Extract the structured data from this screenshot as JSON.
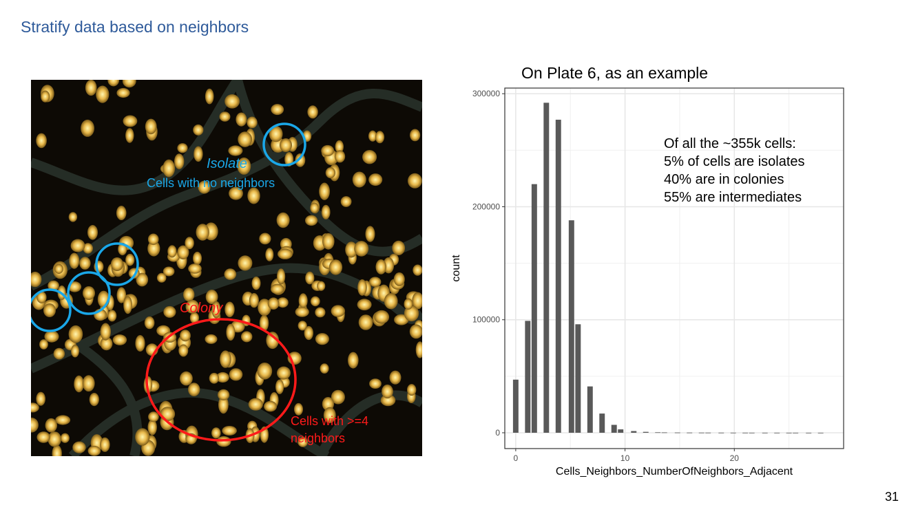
{
  "slide": {
    "title": "Stratify data based on neighbors",
    "page_number": "31"
  },
  "micrograph": {
    "isolate_label": "Isolate",
    "isolate_caption": "Cells with no neighbors",
    "colony_label": "Colony",
    "colony_caption": "Cells with >=4 neighbors",
    "colors": {
      "isolate_ring": "#1aa7e8",
      "colony_ring": "#ff1a1a",
      "background": "#0d0a05",
      "cell": "#e8b84a"
    }
  },
  "annotation": {
    "lines": [
      "Of all the ~355k cells:",
      "5% of cells are isolates",
      "40% are in colonies",
      "55% are intermediates"
    ]
  },
  "chart_data": {
    "type": "bar",
    "title": "On Plate 6, as an example",
    "xlabel": "Cells_Neighbors_NumberOfNeighbors_Adjacent",
    "ylabel": "count",
    "xlim": [
      -1,
      30
    ],
    "ylim": [
      -14000,
      305000
    ],
    "x_ticks": [
      0,
      10,
      20
    ],
    "y_ticks": [
      0,
      100000,
      200000,
      300000
    ],
    "grid": true,
    "bar_color": "#595959",
    "x": [
      0,
      1.1,
      1.7,
      2.8,
      3.9,
      5.1,
      5.7,
      6.8,
      7.9,
      9.0,
      9.6,
      10.8,
      11.9,
      13.0,
      13.6,
      14.8,
      15.9,
      17.0,
      17.6,
      18.8,
      19.9,
      21.0,
      21.6,
      22.8,
      23.9,
      25.0,
      25.6,
      26.8,
      27.9
    ],
    "values": [
      47000,
      99000,
      220000,
      292000,
      277000,
      188000,
      96000,
      41000,
      17000,
      7000,
      3000,
      1500,
      800,
      400,
      300,
      200,
      150,
      120,
      100,
      80,
      60,
      50,
      40,
      30,
      25,
      20,
      15,
      10,
      8
    ]
  }
}
